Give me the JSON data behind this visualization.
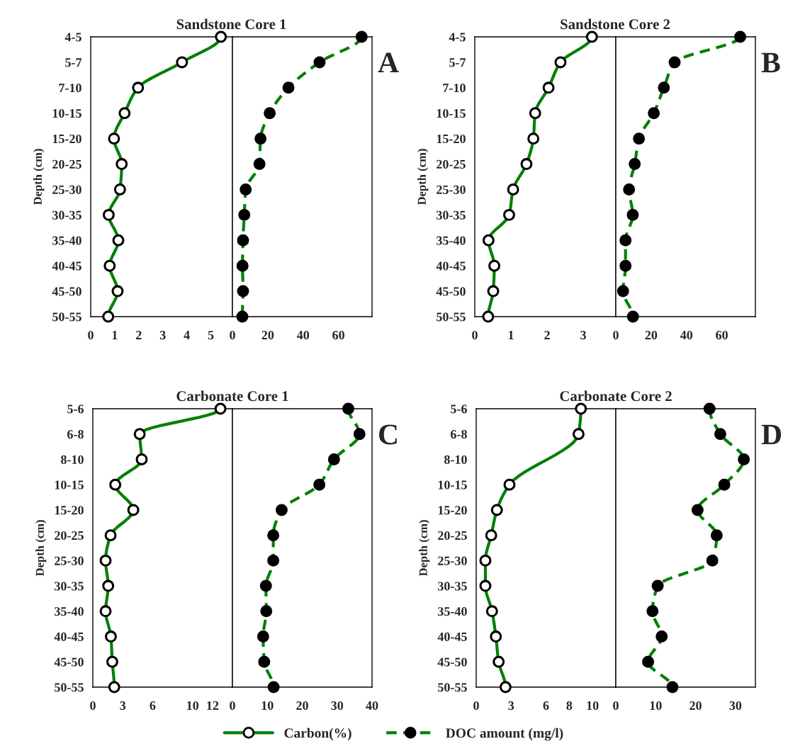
{
  "chart_data": [
    {
      "type": "line",
      "orientation": "horizontal",
      "title": "Sandstone Core 1",
      "ylabel": "Depth (cm)",
      "categories": [
        "4-5",
        "5-7",
        "7-10",
        "10-15",
        "15-20",
        "20-25",
        "25-30",
        "30-35",
        "35-40",
        "40-45",
        "45-50",
        "50-55"
      ],
      "series": [
        {
          "name": "Carbon(%)",
          "color": "#008000",
          "marker": "circle",
          "line_style": "solid",
          "values": [
            5.42,
            3.8,
            1.97,
            1.41,
            0.97,
            1.29,
            1.22,
            0.75,
            1.15,
            0.79,
            1.12,
            0.73
          ]
        }
      ],
      "xlim": [
        0,
        5.9
      ],
      "xticks": [
        0,
        1,
        2,
        3,
        4,
        5
      ],
      "grid": false
    },
    {
      "type": "line",
      "orientation": "horizontal",
      "annotations": [
        "A"
      ],
      "categories": [
        "4-5",
        "5-7",
        "7-10",
        "10-15",
        "15-20",
        "20-25",
        "25-30",
        "30-35",
        "35-40",
        "40-45",
        "45-50",
        "50-55"
      ],
      "series": [
        {
          "name": "DOC amount (mg/l)",
          "color": "#008000",
          "marker": "circle",
          "line_style": "dashed",
          "values": [
            73.1,
            49.3,
            31.7,
            21.1,
            15.9,
            15.3,
            7.5,
            6.7,
            6.0,
            5.7,
            6.0,
            5.6
          ]
        }
      ],
      "xlim": [
        0,
        79
      ],
      "xticks": [
        0,
        20,
        40,
        60
      ],
      "tick_labels": "x",
      "grid": false
    },
    {
      "type": "line",
      "orientation": "horizontal",
      "title": "Sandstone Core 2",
      "ylabel": "Depth (cm)",
      "categories": [
        "4-5",
        "5-7",
        "7-10",
        "10-15",
        "15-20",
        "20-25",
        "25-30",
        "30-35",
        "35-40",
        "40-45",
        "45-50",
        "50-55"
      ],
      "series": [
        {
          "name": "Carbon(%)",
          "color": "#008000",
          "marker": "circle",
          "line_style": "solid",
          "values": [
            3.24,
            2.37,
            2.04,
            1.67,
            1.62,
            1.43,
            1.06,
            0.95,
            0.38,
            0.54,
            0.51,
            0.37
          ]
        }
      ],
      "xlim": [
        0,
        3.9
      ],
      "xticks": [
        0,
        1,
        2,
        3
      ],
      "grid": false
    },
    {
      "type": "line",
      "orientation": "horizontal",
      "annotations": [
        "B"
      ],
      "categories": [
        "4-5",
        "5-7",
        "7-10",
        "10-15",
        "15-20",
        "20-25",
        "25-30",
        "30-35",
        "35-40",
        "40-45",
        "45-50",
        "50-55"
      ],
      "series": [
        {
          "name": "DOC amount (mg/l)",
          "color": "#008000",
          "marker": "circle",
          "line_style": "dashed",
          "values": [
            70.4,
            33.3,
            27.2,
            21.5,
            13.1,
            10.7,
            7.5,
            9.6,
            5.5,
            5.5,
            4.1,
            9.7
          ]
        }
      ],
      "xlim": [
        0,
        79
      ],
      "xticks": [
        0,
        20,
        40,
        60
      ],
      "tick_labels": "x",
      "grid": false
    },
    {
      "type": "line",
      "orientation": "horizontal",
      "title": "Carbonate Core 1",
      "ylabel": "Depth (cm)",
      "categories": [
        "5-6",
        "6-8",
        "8-10",
        "10-15",
        "15-20",
        "20-25",
        "25-30",
        "30-35",
        "35-40",
        "40-45",
        "45-50",
        "50-55"
      ],
      "series": [
        {
          "name": "Carbon(%)",
          "color": "#008000",
          "marker": "circle",
          "line_style": "solid",
          "values": [
            12.8,
            4.7,
            4.9,
            2.25,
            4.06,
            1.78,
            1.28,
            1.54,
            1.28,
            1.81,
            1.95,
            2.15
          ]
        }
      ],
      "xlim": [
        0,
        14
      ],
      "xticks": [
        0,
        3,
        6,
        10,
        12
      ],
      "grid": false
    },
    {
      "type": "line",
      "orientation": "horizontal",
      "annotations": [
        "C"
      ],
      "categories": [
        "5-6",
        "6-8",
        "8-10",
        "10-15",
        "15-20",
        "20-25",
        "25-30",
        "30-35",
        "35-40",
        "40-45",
        "45-50",
        "50-55"
      ],
      "series": [
        {
          "name": "DOC amount (mg/l)",
          "color": "#008000",
          "marker": "circle",
          "line_style": "dashed",
          "values": [
            33.2,
            36.4,
            29.1,
            24.9,
            14.1,
            11.7,
            11.7,
            9.6,
            9.7,
            8.8,
            9.1,
            11.8
          ]
        }
      ],
      "xlim": [
        0,
        40
      ],
      "xticks": [
        0,
        10,
        20,
        30,
        40
      ],
      "tick_labels": "x",
      "grid": false
    },
    {
      "type": "line",
      "orientation": "horizontal",
      "title": "Carbonate Core 2",
      "ylabel": "Depth (cm)",
      "categories": [
        "5-6",
        "6-8",
        "8-10",
        "10-15",
        "15-20",
        "20-25",
        "25-30",
        "30-35",
        "35-40",
        "40-45",
        "45-50",
        "50-55"
      ],
      "series": [
        {
          "name": "Carbon(%)",
          "color": "#008000",
          "marker": "circle",
          "line_style": "solid",
          "values": [
            9.0,
            8.8,
            null,
            2.86,
            1.78,
            1.29,
            0.79,
            0.79,
            1.36,
            1.69,
            1.93,
            2.52
          ]
        }
      ],
      "xlim": [
        0,
        12
      ],
      "xticks": [
        0,
        3,
        6,
        8,
        10
      ],
      "grid": false,
      "legend": "bottom"
    },
    {
      "type": "line",
      "orientation": "horizontal",
      "annotations": [
        "D"
      ],
      "categories": [
        "5-6",
        "6-8",
        "8-10",
        "10-15",
        "15-20",
        "20-25",
        "25-30",
        "30-35",
        "35-40",
        "40-45",
        "45-50",
        "50-55"
      ],
      "series": [
        {
          "name": "DOC amount (mg/l)",
          "color": "#008000",
          "marker": "circle",
          "line_style": "dashed",
          "values": [
            23.5,
            26.2,
            32.1,
            27.2,
            20.5,
            25.3,
            24.2,
            10.5,
            9.2,
            11.5,
            8.1,
            14.2
          ]
        }
      ],
      "xlim": [
        0,
        35
      ],
      "xticks": [
        0,
        10,
        20,
        30
      ],
      "tick_labels": "x",
      "grid": false,
      "legend": "bottom"
    }
  ]
}
